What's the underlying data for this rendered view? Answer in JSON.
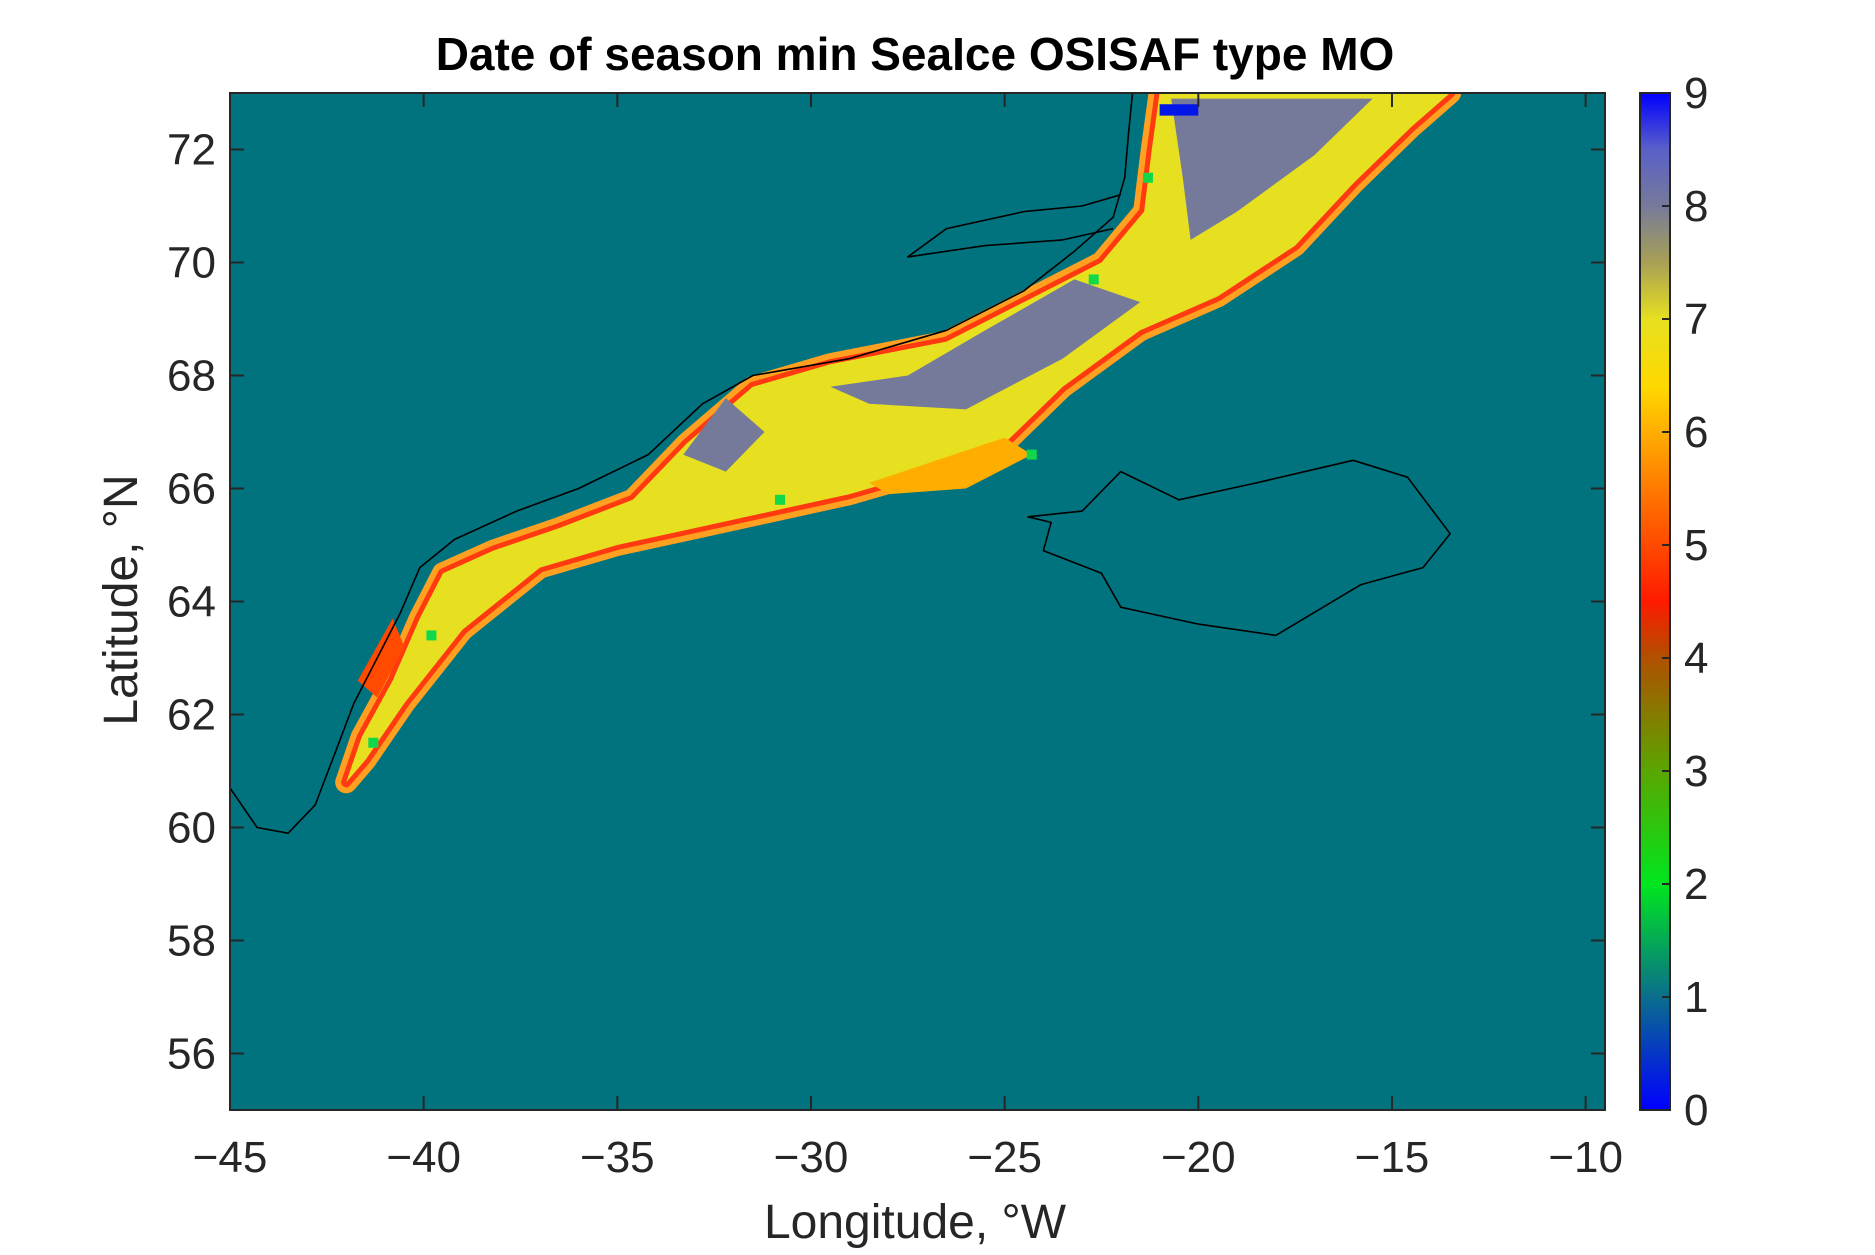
{
  "chart_data": {
    "type": "heatmap",
    "title": "Date of season min SeaIce OSISAF type MO",
    "xlabel": "Longitude, °W",
    "ylabel": "Latitude, °N",
    "xlim": [
      -45,
      -9.5
    ],
    "ylim": [
      55,
      73
    ],
    "x_ticks": [
      -45,
      -40,
      -35,
      -30,
      -25,
      -20,
      -15,
      -10
    ],
    "y_ticks": [
      56,
      58,
      60,
      62,
      64,
      66,
      68,
      70,
      72
    ],
    "colorbar": {
      "min": 0,
      "max": 9,
      "ticks": [
        0,
        1,
        2,
        3,
        4,
        5,
        6,
        7,
        8,
        9
      ],
      "colormap_stops": [
        {
          "value": 0,
          "color": "#0000ff"
        },
        {
          "value": 1,
          "color": "#0a6e8c"
        },
        {
          "value": 2,
          "color": "#00e61e"
        },
        {
          "value": 3,
          "color": "#5aa600"
        },
        {
          "value": 4,
          "color": "#b05000"
        },
        {
          "value": 4.5,
          "color": "#ff1a00"
        },
        {
          "value": 5.5,
          "color": "#ff7a00"
        },
        {
          "value": 6.4,
          "color": "#ffd800"
        },
        {
          "value": 7,
          "color": "#e6e020"
        },
        {
          "value": 7.5,
          "color": "#a8a055"
        },
        {
          "value": 8,
          "color": "#767a9a"
        },
        {
          "value": 8.5,
          "color": "#5a60c8"
        },
        {
          "value": 9,
          "color": "#0000ff"
        }
      ]
    },
    "background_value": 1,
    "background_color": "#00737f",
    "colors": {
      "ice_main": "#e2e022",
      "ice_late": "#747a9a",
      "edge_orange": "#ffa020",
      "edge_red": "#ff3a10",
      "edge_green": "#10d84a",
      "edge_blue": "#0010ff"
    },
    "regions": [
      {
        "name": "main ice band",
        "value": 7.0,
        "coords": [
          [
            -42,
            60.8
          ],
          [
            -41.6,
            61.6
          ],
          [
            -40.8,
            62.6
          ],
          [
            -40.1,
            63.7
          ],
          [
            -39.5,
            64.5
          ],
          [
            -38.2,
            64.9
          ],
          [
            -36.5,
            65.3
          ],
          [
            -34.6,
            65.8
          ],
          [
            -33.2,
            66.8
          ],
          [
            -31.5,
            67.8
          ],
          [
            -29.5,
            68.2
          ],
          [
            -26.5,
            68.6
          ],
          [
            -24.5,
            69.3
          ],
          [
            -22.5,
            70
          ],
          [
            -21.4,
            70.9
          ],
          [
            -21.2,
            72
          ],
          [
            -21,
            73
          ],
          [
            -13.5,
            73
          ],
          [
            -14.5,
            72.4
          ],
          [
            -16,
            71.4
          ],
          [
            -17.5,
            70.3
          ],
          [
            -19.5,
            69.4
          ],
          [
            -21.5,
            68.8
          ],
          [
            -23.5,
            67.8
          ],
          [
            -25,
            66.8
          ],
          [
            -27,
            66.3
          ],
          [
            -29,
            65.9
          ],
          [
            -31,
            65.6
          ],
          [
            -33,
            65.3
          ],
          [
            -35,
            65
          ],
          [
            -37,
            64.6
          ],
          [
            -39,
            63.5
          ],
          [
            -40.5,
            62.2
          ],
          [
            -41.5,
            61.2
          ]
        ]
      },
      {
        "name": "late ice patch north",
        "value": 8.0,
        "coords": [
          [
            -20.7,
            72.9
          ],
          [
            -15.5,
            72.9
          ],
          [
            -17,
            71.9
          ],
          [
            -19,
            70.9
          ],
          [
            -20.2,
            70.4
          ],
          [
            -20.4,
            71.5
          ]
        ]
      },
      {
        "name": "late ice patch mid",
        "value": 8.0,
        "coords": [
          [
            -23.5,
            68.3
          ],
          [
            -21.5,
            69.3
          ],
          [
            -23.2,
            69.7
          ],
          [
            -25.5,
            68.8
          ],
          [
            -27.5,
            68.0
          ],
          [
            -29.5,
            67.8
          ],
          [
            -28.5,
            67.5
          ],
          [
            -26,
            67.4
          ]
        ]
      },
      {
        "name": "late ice patch west",
        "value": 8.0,
        "coords": [
          [
            -33.3,
            66.6
          ],
          [
            -32.2,
            67.6
          ],
          [
            -31.2,
            67.0
          ],
          [
            -32.2,
            66.3
          ]
        ]
      },
      {
        "name": "early ice patch",
        "value": 6.0,
        "coords": [
          [
            -28.5,
            66.1
          ],
          [
            -25,
            66.9
          ],
          [
            -24.3,
            66.6
          ],
          [
            -26,
            66.0
          ],
          [
            -28,
            65.9
          ]
        ]
      },
      {
        "name": "early ice patch sw",
        "value": 5.0,
        "coords": [
          [
            -41.7,
            62.6
          ],
          [
            -40.8,
            63.7
          ],
          [
            -40.5,
            63.2
          ],
          [
            -41.2,
            62.3
          ]
        ]
      },
      {
        "name": "first ice spot",
        "value": 0.2,
        "coords": [
          [
            -21,
            72.8
          ],
          [
            -20,
            72.8
          ],
          [
            -20,
            72.6
          ],
          [
            -21,
            72.6
          ]
        ]
      }
    ],
    "coastlines": [
      {
        "name": "Greenland",
        "coords": [
          [
            -45,
            60.7
          ],
          [
            -44.3,
            60.0
          ],
          [
            -43.5,
            59.9
          ],
          [
            -42.8,
            60.4
          ],
          [
            -42.3,
            61.3
          ],
          [
            -41.8,
            62.2
          ],
          [
            -41.2,
            63.0
          ],
          [
            -40.6,
            63.8
          ],
          [
            -40.1,
            64.6
          ],
          [
            -39.2,
            65.1
          ],
          [
            -37.6,
            65.6
          ],
          [
            -36.0,
            66.0
          ],
          [
            -34.2,
            66.6
          ],
          [
            -32.8,
            67.5
          ],
          [
            -31.5,
            68.0
          ],
          [
            -29.0,
            68.3
          ],
          [
            -26.5,
            68.8
          ],
          [
            -24.5,
            69.5
          ],
          [
            -23.2,
            70.2
          ],
          [
            -22.2,
            70.8
          ],
          [
            -21.9,
            71.5
          ],
          [
            -21.8,
            72.3
          ],
          [
            -21.7,
            73.0
          ]
        ]
      },
      {
        "name": "Scoresby Sund",
        "coords": [
          [
            -22.2,
            70.6
          ],
          [
            -23.5,
            70.4
          ],
          [
            -25.5,
            70.3
          ],
          [
            -27.5,
            70.1
          ],
          [
            -26.5,
            70.6
          ],
          [
            -24.5,
            70.9
          ],
          [
            -23.0,
            71.0
          ],
          [
            -22.0,
            71.2
          ]
        ]
      },
      {
        "name": "Iceland",
        "coords": [
          [
            -24.4,
            65.5
          ],
          [
            -23.0,
            65.6
          ],
          [
            -22.0,
            66.3
          ],
          [
            -20.5,
            65.8
          ],
          [
            -18.5,
            66.1
          ],
          [
            -16.0,
            66.5
          ],
          [
            -14.6,
            66.2
          ],
          [
            -13.5,
            65.2
          ],
          [
            -14.2,
            64.6
          ],
          [
            -15.8,
            64.3
          ],
          [
            -18.0,
            63.4
          ],
          [
            -20.0,
            63.6
          ],
          [
            -22.0,
            63.9
          ],
          [
            -22.5,
            64.5
          ],
          [
            -24.0,
            64.9
          ],
          [
            -23.8,
            65.4
          ]
        ]
      }
    ]
  }
}
